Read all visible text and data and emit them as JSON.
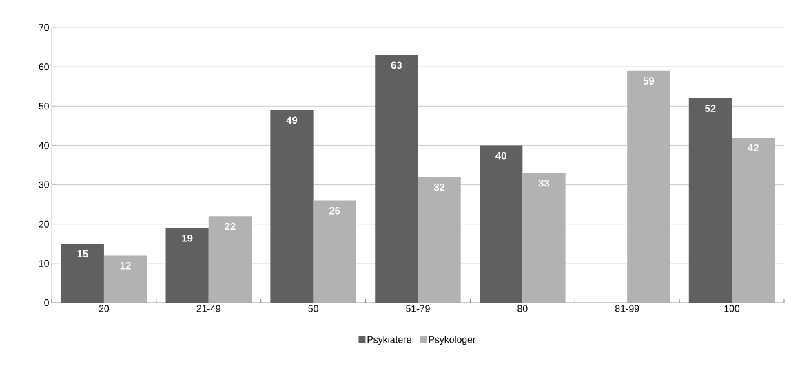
{
  "chart_data": {
    "type": "bar",
    "categories": [
      "20",
      "21-49",
      "50",
      "51-79",
      "80",
      "81-99",
      "100"
    ],
    "series": [
      {
        "name": "Psykiatere",
        "color": "#606060",
        "values": [
          15,
          19,
          49,
          63,
          40,
          null,
          52
        ]
      },
      {
        "name": "Psykologer",
        "color": "#b2b2b2",
        "values": [
          12,
          22,
          26,
          32,
          33,
          59,
          42
        ]
      }
    ],
    "ylim": [
      0,
      70
    ],
    "yticks": [
      0,
      10,
      20,
      30,
      40,
      50,
      60,
      70
    ],
    "grid": "y",
    "legend": "bottom",
    "data_labels": true
  }
}
